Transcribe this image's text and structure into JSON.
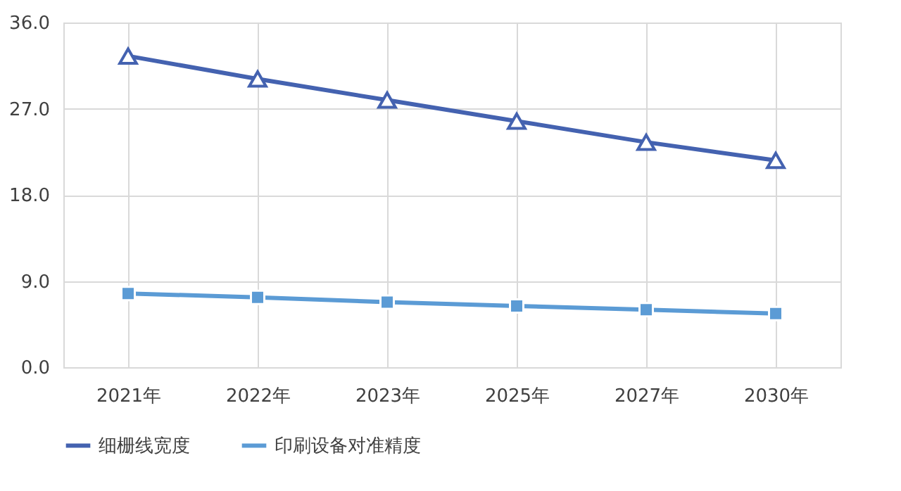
{
  "chart_data": {
    "type": "line",
    "categories": [
      "2021年",
      "2022年",
      "2023年",
      "2025年",
      "2027年",
      "2030年"
    ],
    "series": [
      {
        "name": "细栅线宽度",
        "color": "#4462b0",
        "marker": "triangle",
        "values": [
          32.5,
          30.1,
          27.9,
          25.7,
          23.5,
          21.6
        ]
      },
      {
        "name": "印刷设备对准精度",
        "color": "#5b9bd5",
        "marker": "square",
        "values": [
          7.7,
          7.3,
          6.8,
          6.4,
          6.0,
          5.6
        ]
      }
    ],
    "ylim": [
      0,
      36
    ],
    "yticks": [
      {
        "value": 0,
        "label": "0.0"
      },
      {
        "value": 9,
        "label": "9.0"
      },
      {
        "value": 18,
        "label": "18.0"
      },
      {
        "value": 27,
        "label": "27.0"
      },
      {
        "value": 36,
        "label": "36.0"
      }
    ],
    "grid": true,
    "legend": "bottom"
  }
}
